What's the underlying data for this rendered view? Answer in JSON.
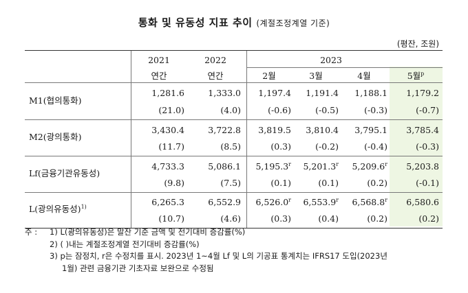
{
  "title": {
    "main": "통화 및 유동성 지표 추이",
    "sub": "(계절조정계열 기준)"
  },
  "unit": "(평잔, 조원)",
  "header": {
    "years": [
      "2021",
      "2022",
      "2023"
    ],
    "periods": [
      "연간",
      "연간",
      "2월",
      "3월",
      "4월",
      "5월"
    ],
    "p_mark": "p"
  },
  "rows": [
    {
      "label": "M1(협의통화)",
      "values": [
        "1,281.6",
        "1,333.0",
        "1,197.4",
        "1,191.4",
        "1,188.1",
        "1,179.2"
      ],
      "changes": [
        "(21.0)",
        "(4.0)",
        "(-0.6)",
        "(-0.5)",
        "(-0.3)",
        "(-0.7)"
      ]
    },
    {
      "label": "M2(광의통화)",
      "values": [
        "3,430.4",
        "3,722.8",
        "3,819.5",
        "3,810.4",
        "3,795.1",
        "3,785.4"
      ],
      "changes": [
        "(11.7)",
        "(8.5)",
        "(0.3)",
        "(-0.2)",
        "(-0.4)",
        "(-0.3)"
      ]
    },
    {
      "label": "Lf(금융기관유동성)",
      "values": [
        "4,733.3",
        "5,086.1",
        "5,195.3",
        "5,201.3",
        "5,209.6",
        "5,203.8"
      ],
      "marks": [
        "",
        "",
        "r",
        "r",
        "r",
        ""
      ],
      "changes": [
        "(9.8)",
        "(7.5)",
        "(0.1)",
        "(0.1)",
        "(0.2)",
        "(-0.1)"
      ]
    },
    {
      "label": "L(광의유동성)",
      "label_sup": "1)",
      "values": [
        "6,265.3",
        "6,552.9",
        "6,526.0",
        "6,553.9",
        "6,568.8",
        "6,580.6"
      ],
      "marks": [
        "",
        "",
        "r",
        "r",
        "r",
        ""
      ],
      "changes": [
        "(10.7)",
        "(4.6)",
        "(0.3)",
        "(0.4)",
        "(0.2)",
        "(0.2)"
      ]
    }
  ],
  "notes": {
    "prefix": "주 :",
    "n1": "1) L(광의유동성)은 말잔 기준 금액 및 전기대비 증감률(%)",
    "n2": "2) (  )내는 계절조정계열 전기대비 증감률(%)",
    "n3a": "3) p는 잠정치, r은 수정치를 표시. 2023년 1~4월 Lf 및 L의 기공표 통계치는 IFRS17 도입(2023년",
    "n3b": "1월) 관련 금융기관 기초자료 보완으로 수정됨"
  }
}
